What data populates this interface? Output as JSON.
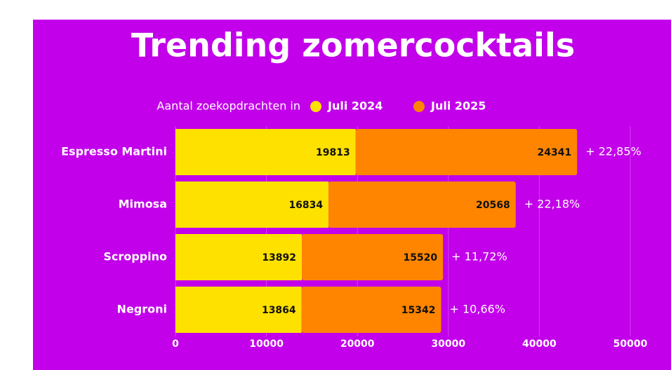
{
  "chart_data": {
    "type": "stacked-barh",
    "title": "Trending zomercocktails",
    "legend_title": "Aantal zoekopdrachten in",
    "categories": [
      "Espresso Martini",
      "Mimosa",
      "Scroppino",
      "Negroni"
    ],
    "series": [
      {
        "name": "Juli 2024",
        "color": "#ffe100",
        "values": [
          19813,
          16834,
          13892,
          13864
        ]
      },
      {
        "name": "Juli 2025",
        "color": "#ff8500",
        "values": [
          24341,
          20568,
          15520,
          15342
        ]
      }
    ],
    "growth_labels": [
      "+ 22,85%",
      "+ 22,18%",
      "+ 11,72%",
      "+ 10,66%"
    ],
    "xlim": [
      0,
      50000
    ],
    "xticks": [
      0,
      10000,
      20000,
      30000,
      40000,
      50000
    ],
    "grid": true,
    "background": "#c200ea"
  }
}
